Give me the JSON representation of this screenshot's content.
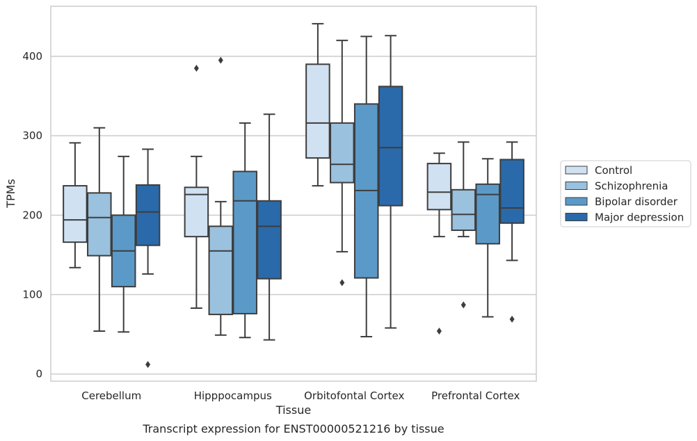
{
  "caption": "Transcript expression for ENST00000521216 by tissue",
  "chart_data": {
    "type": "box",
    "title": "",
    "xlabel": "Tissue",
    "ylabel": "TPMs",
    "ylim": [
      -9,
      463
    ],
    "yticks": [
      0,
      100,
      200,
      300,
      400
    ],
    "grid": true,
    "legend_position": "right",
    "categories": [
      "Cerebellum",
      "Hipppocampus",
      "Orbitofontal Cortex",
      "Prefrontal Cortex"
    ],
    "series": [
      {
        "name": "Control",
        "color": "#d0e1f2",
        "boxes": [
          {
            "whisker_low": 134,
            "q1": 166,
            "median": 194,
            "q3": 237,
            "whisker_high": 291,
            "outliers": []
          },
          {
            "whisker_low": 83,
            "q1": 173,
            "median": 226,
            "q3": 235,
            "whisker_high": 274,
            "outliers": [
              385
            ]
          },
          {
            "whisker_low": 237,
            "q1": 272,
            "median": 316,
            "q3": 390,
            "whisker_high": 441,
            "outliers": []
          },
          {
            "whisker_low": 173,
            "q1": 207,
            "median": 229,
            "q3": 265,
            "whisker_high": 278,
            "outliers": [
              54
            ]
          }
        ]
      },
      {
        "name": "Schizophrenia",
        "color": "#9ac1de",
        "boxes": [
          {
            "whisker_low": 54,
            "q1": 149,
            "median": 197,
            "q3": 228,
            "whisker_high": 310,
            "outliers": []
          },
          {
            "whisker_low": 49,
            "q1": 75,
            "median": 155,
            "q3": 186,
            "whisker_high": 217,
            "outliers": [
              395
            ]
          },
          {
            "whisker_low": 154,
            "q1": 241,
            "median": 264,
            "q3": 316,
            "whisker_high": 420,
            "outliers": [
              115
            ]
          },
          {
            "whisker_low": 173,
            "q1": 181,
            "median": 201,
            "q3": 232,
            "whisker_high": 292,
            "outliers": [
              87
            ]
          }
        ]
      },
      {
        "name": "Bipolar disorder",
        "color": "#5b9ac8",
        "boxes": [
          {
            "whisker_low": 53,
            "q1": 110,
            "median": 155,
            "q3": 200,
            "whisker_high": 274,
            "outliers": []
          },
          {
            "whisker_low": 46,
            "q1": 76,
            "median": 218,
            "q3": 255,
            "whisker_high": 316,
            "outliers": []
          },
          {
            "whisker_low": 47,
            "q1": 121,
            "median": 231,
            "q3": 340,
            "whisker_high": 425,
            "outliers": []
          },
          {
            "whisker_low": 72,
            "q1": 164,
            "median": 226,
            "q3": 239,
            "whisker_high": 271,
            "outliers": []
          }
        ]
      },
      {
        "name": "Major depression",
        "color": "#2a6aaa",
        "boxes": [
          {
            "whisker_low": 126,
            "q1": 162,
            "median": 204,
            "q3": 238,
            "whisker_high": 283,
            "outliers": [
              12
            ]
          },
          {
            "whisker_low": 43,
            "q1": 120,
            "median": 186,
            "q3": 218,
            "whisker_high": 327,
            "outliers": []
          },
          {
            "whisker_low": 58,
            "q1": 212,
            "median": 285,
            "q3": 362,
            "whisker_high": 426,
            "outliers": []
          },
          {
            "whisker_low": 143,
            "q1": 190,
            "median": 209,
            "q3": 270,
            "whisker_high": 292,
            "outliers": [
              69
            ]
          }
        ]
      }
    ]
  }
}
